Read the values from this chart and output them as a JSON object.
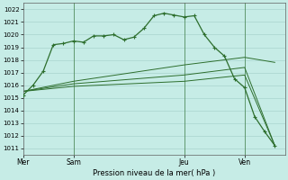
{
  "background_color": "#c6ece6",
  "grid_color": "#a8d4ce",
  "line_color": "#2d6e2d",
  "title": "Pression niveau de la mer( hPa )",
  "ylim": [
    1010.5,
    1022.5
  ],
  "yticks": [
    1011,
    1012,
    1013,
    1014,
    1015,
    1016,
    1017,
    1018,
    1019,
    1020,
    1021,
    1022
  ],
  "day_labels": [
    "Mer",
    "Sam",
    "Jeu",
    "Ven"
  ],
  "day_positions": [
    0,
    5,
    16,
    22
  ],
  "vline_positions": [
    5,
    16,
    22
  ],
  "xlim": [
    0,
    26
  ],
  "line1_x": [
    0,
    1,
    2,
    3,
    4,
    5,
    6,
    7,
    8,
    9,
    10,
    11,
    12,
    13,
    14,
    15,
    16,
    17,
    18,
    19,
    20,
    21,
    22,
    23,
    24,
    25
  ],
  "line1_y": [
    1015.2,
    1016.0,
    1017.1,
    1019.2,
    1019.3,
    1019.5,
    1019.4,
    1019.9,
    1019.9,
    1020.0,
    1019.6,
    1019.8,
    1020.5,
    1021.5,
    1021.7,
    1021.55,
    1021.4,
    1021.5,
    1020.0,
    1019.0,
    1018.3,
    1016.5,
    1015.8,
    1013.5,
    1012.3,
    1011.2
  ],
  "line2_x": [
    0,
    5,
    16,
    22,
    25
  ],
  "line2_y": [
    1015.5,
    1016.3,
    1017.6,
    1018.2,
    1017.8
  ],
  "line3_x": [
    0,
    5,
    16,
    22,
    25
  ],
  "line3_y": [
    1015.5,
    1016.1,
    1016.8,
    1017.4,
    1011.2
  ],
  "line4_x": [
    0,
    5,
    16,
    22,
    25
  ],
  "line4_y": [
    1015.5,
    1015.9,
    1016.3,
    1016.8,
    1011.2
  ]
}
